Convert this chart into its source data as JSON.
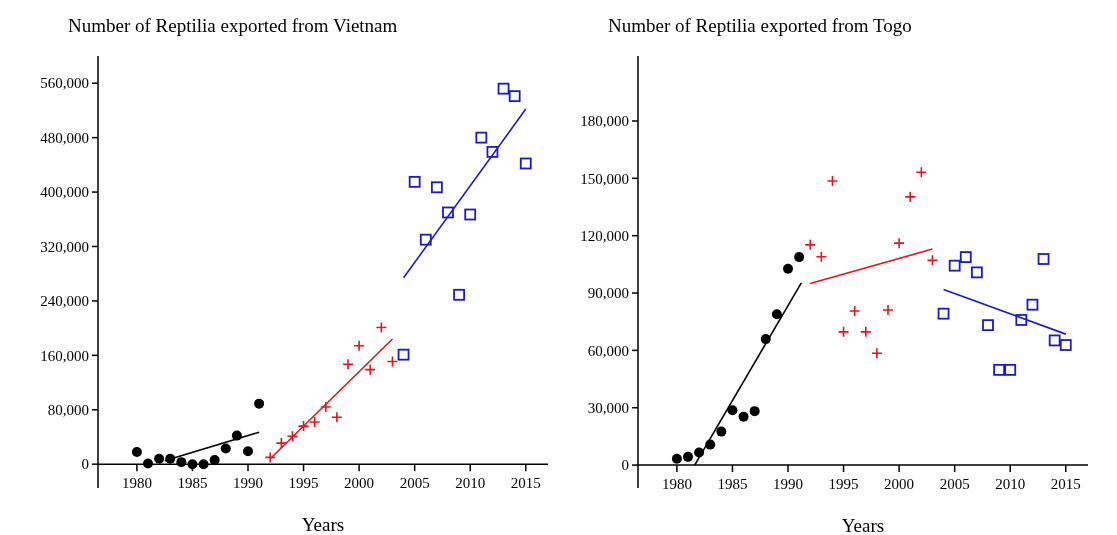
{
  "chart_data": [
    {
      "type": "scatter",
      "title": "Number of Reptilia exported from Vietnam",
      "xlabel": "Years",
      "xlim": [
        1976.5,
        2017
      ],
      "ylim": [
        -35000,
        600000
      ],
      "xticks": [
        1980,
        1985,
        1990,
        1995,
        2000,
        2005,
        2010,
        2015
      ],
      "yticks": [
        {
          "value": 0,
          "label": "0"
        },
        {
          "value": 80000,
          "label": "80,000"
        },
        {
          "value": 160000,
          "label": "160,000"
        },
        {
          "value": 240000,
          "label": "240,000"
        },
        {
          "value": 320000,
          "label": "320,000"
        },
        {
          "value": 400000,
          "label": "400,000"
        },
        {
          "value": 480000,
          "label": "480,000"
        },
        {
          "value": 560000,
          "label": "560,000"
        }
      ],
      "grid": false,
      "series": [
        {
          "marker": "circle",
          "color": "#000000",
          "x": [
            1980,
            1981,
            1982,
            1983,
            1984,
            1985,
            1986,
            1987,
            1988,
            1989,
            1990,
            1991
          ],
          "values": [
            18000,
            1000,
            8000,
            8000,
            3000,
            0,
            0,
            6000,
            23000,
            42000,
            19000,
            89000
          ]
        },
        {
          "marker": "cross",
          "color": "#e8141c",
          "x": [
            1992,
            1993,
            1994,
            1995,
            1996,
            1997,
            1998,
            1999,
            2000,
            2001,
            2002,
            2003
          ],
          "values": [
            10000,
            31000,
            41000,
            56000,
            62000,
            84000,
            69000,
            147000,
            174000,
            139000,
            201000,
            151000
          ]
        },
        {
          "marker": "square",
          "color": "#1a1acc",
          "x": [
            2004,
            2005,
            2006,
            2007,
            2008,
            2009,
            2010,
            2011,
            2012,
            2013,
            2014,
            2015
          ],
          "values": [
            161000,
            415000,
            330000,
            407000,
            370000,
            249000,
            367000,
            480000,
            459000,
            552000,
            541000,
            442000
          ]
        },
        {
          "type": "line",
          "marker": "none",
          "color": "#000000",
          "x": [
            1982.5,
            1991
          ],
          "values": [
            5000,
            47000
          ]
        },
        {
          "type": "line",
          "marker": "none",
          "color": "#e8141c",
          "x": [
            1992,
            2003
          ],
          "values": [
            8000,
            184000
          ]
        },
        {
          "type": "line",
          "marker": "none",
          "color": "#1a1acc",
          "x": [
            2004,
            2015
          ],
          "values": [
            274000,
            522000
          ]
        }
      ]
    },
    {
      "type": "scatter",
      "title": "Number of Reptilia exported from Togo",
      "xlabel": "Years",
      "xlim": [
        1976.5,
        2017
      ],
      "ylim": [
        -12000,
        214000
      ],
      "xticks": [
        1980,
        1985,
        1990,
        1995,
        2000,
        2005,
        2010,
        2015
      ],
      "yticks": [
        {
          "value": 0,
          "label": "0"
        },
        {
          "value": 30000,
          "label": "30,000"
        },
        {
          "value": 60000,
          "label": "60,000"
        },
        {
          "value": 90000,
          "label": "90,000"
        },
        {
          "value": 120000,
          "label": "120,000"
        },
        {
          "value": 150000,
          "label": "150,000"
        },
        {
          "value": 180000,
          "label": "180,000"
        }
      ],
      "grid": false,
      "series": [
        {
          "marker": "circle",
          "color": "#000000",
          "x": [
            1980,
            1981,
            1982,
            1983,
            1984,
            1985,
            1986,
            1987,
            1988,
            1989,
            1990,
            1991
          ],
          "values": [
            3300,
            4300,
            6600,
            10700,
            17500,
            28700,
            25300,
            28200,
            65900,
            78900,
            102700,
            108800
          ]
        },
        {
          "marker": "cross",
          "color": "#e8141c",
          "x": [
            1992,
            1993,
            1994,
            1995,
            1996,
            1997,
            1998,
            1999,
            2000,
            2001,
            2002,
            2003
          ],
          "values": [
            115200,
            109000,
            148600,
            69700,
            80600,
            69700,
            58500,
            81100,
            116100,
            140300,
            153200,
            107100
          ]
        },
        {
          "marker": "square",
          "color": "#1a1acc",
          "x": [
            2004,
            2005,
            2006,
            2007,
            2008,
            2009,
            2010,
            2011,
            2012,
            2013,
            2014,
            2015
          ],
          "values": [
            79200,
            104300,
            108800,
            100800,
            73200,
            49800,
            49800,
            75900,
            83900,
            107800,
            65200,
            62800
          ]
        },
        {
          "type": "line",
          "marker": "none",
          "color": "#000000",
          "x": [
            1981.6,
            1991.2
          ],
          "values": [
            0,
            95300
          ]
        },
        {
          "type": "line",
          "marker": "none",
          "color": "#e8141c",
          "x": [
            1992,
            2003
          ],
          "values": [
            95000,
            113000
          ]
        },
        {
          "type": "line",
          "marker": "none",
          "color": "#1a1acc",
          "x": [
            2004,
            2015
          ],
          "values": [
            91900,
            68500
          ]
        }
      ]
    }
  ]
}
